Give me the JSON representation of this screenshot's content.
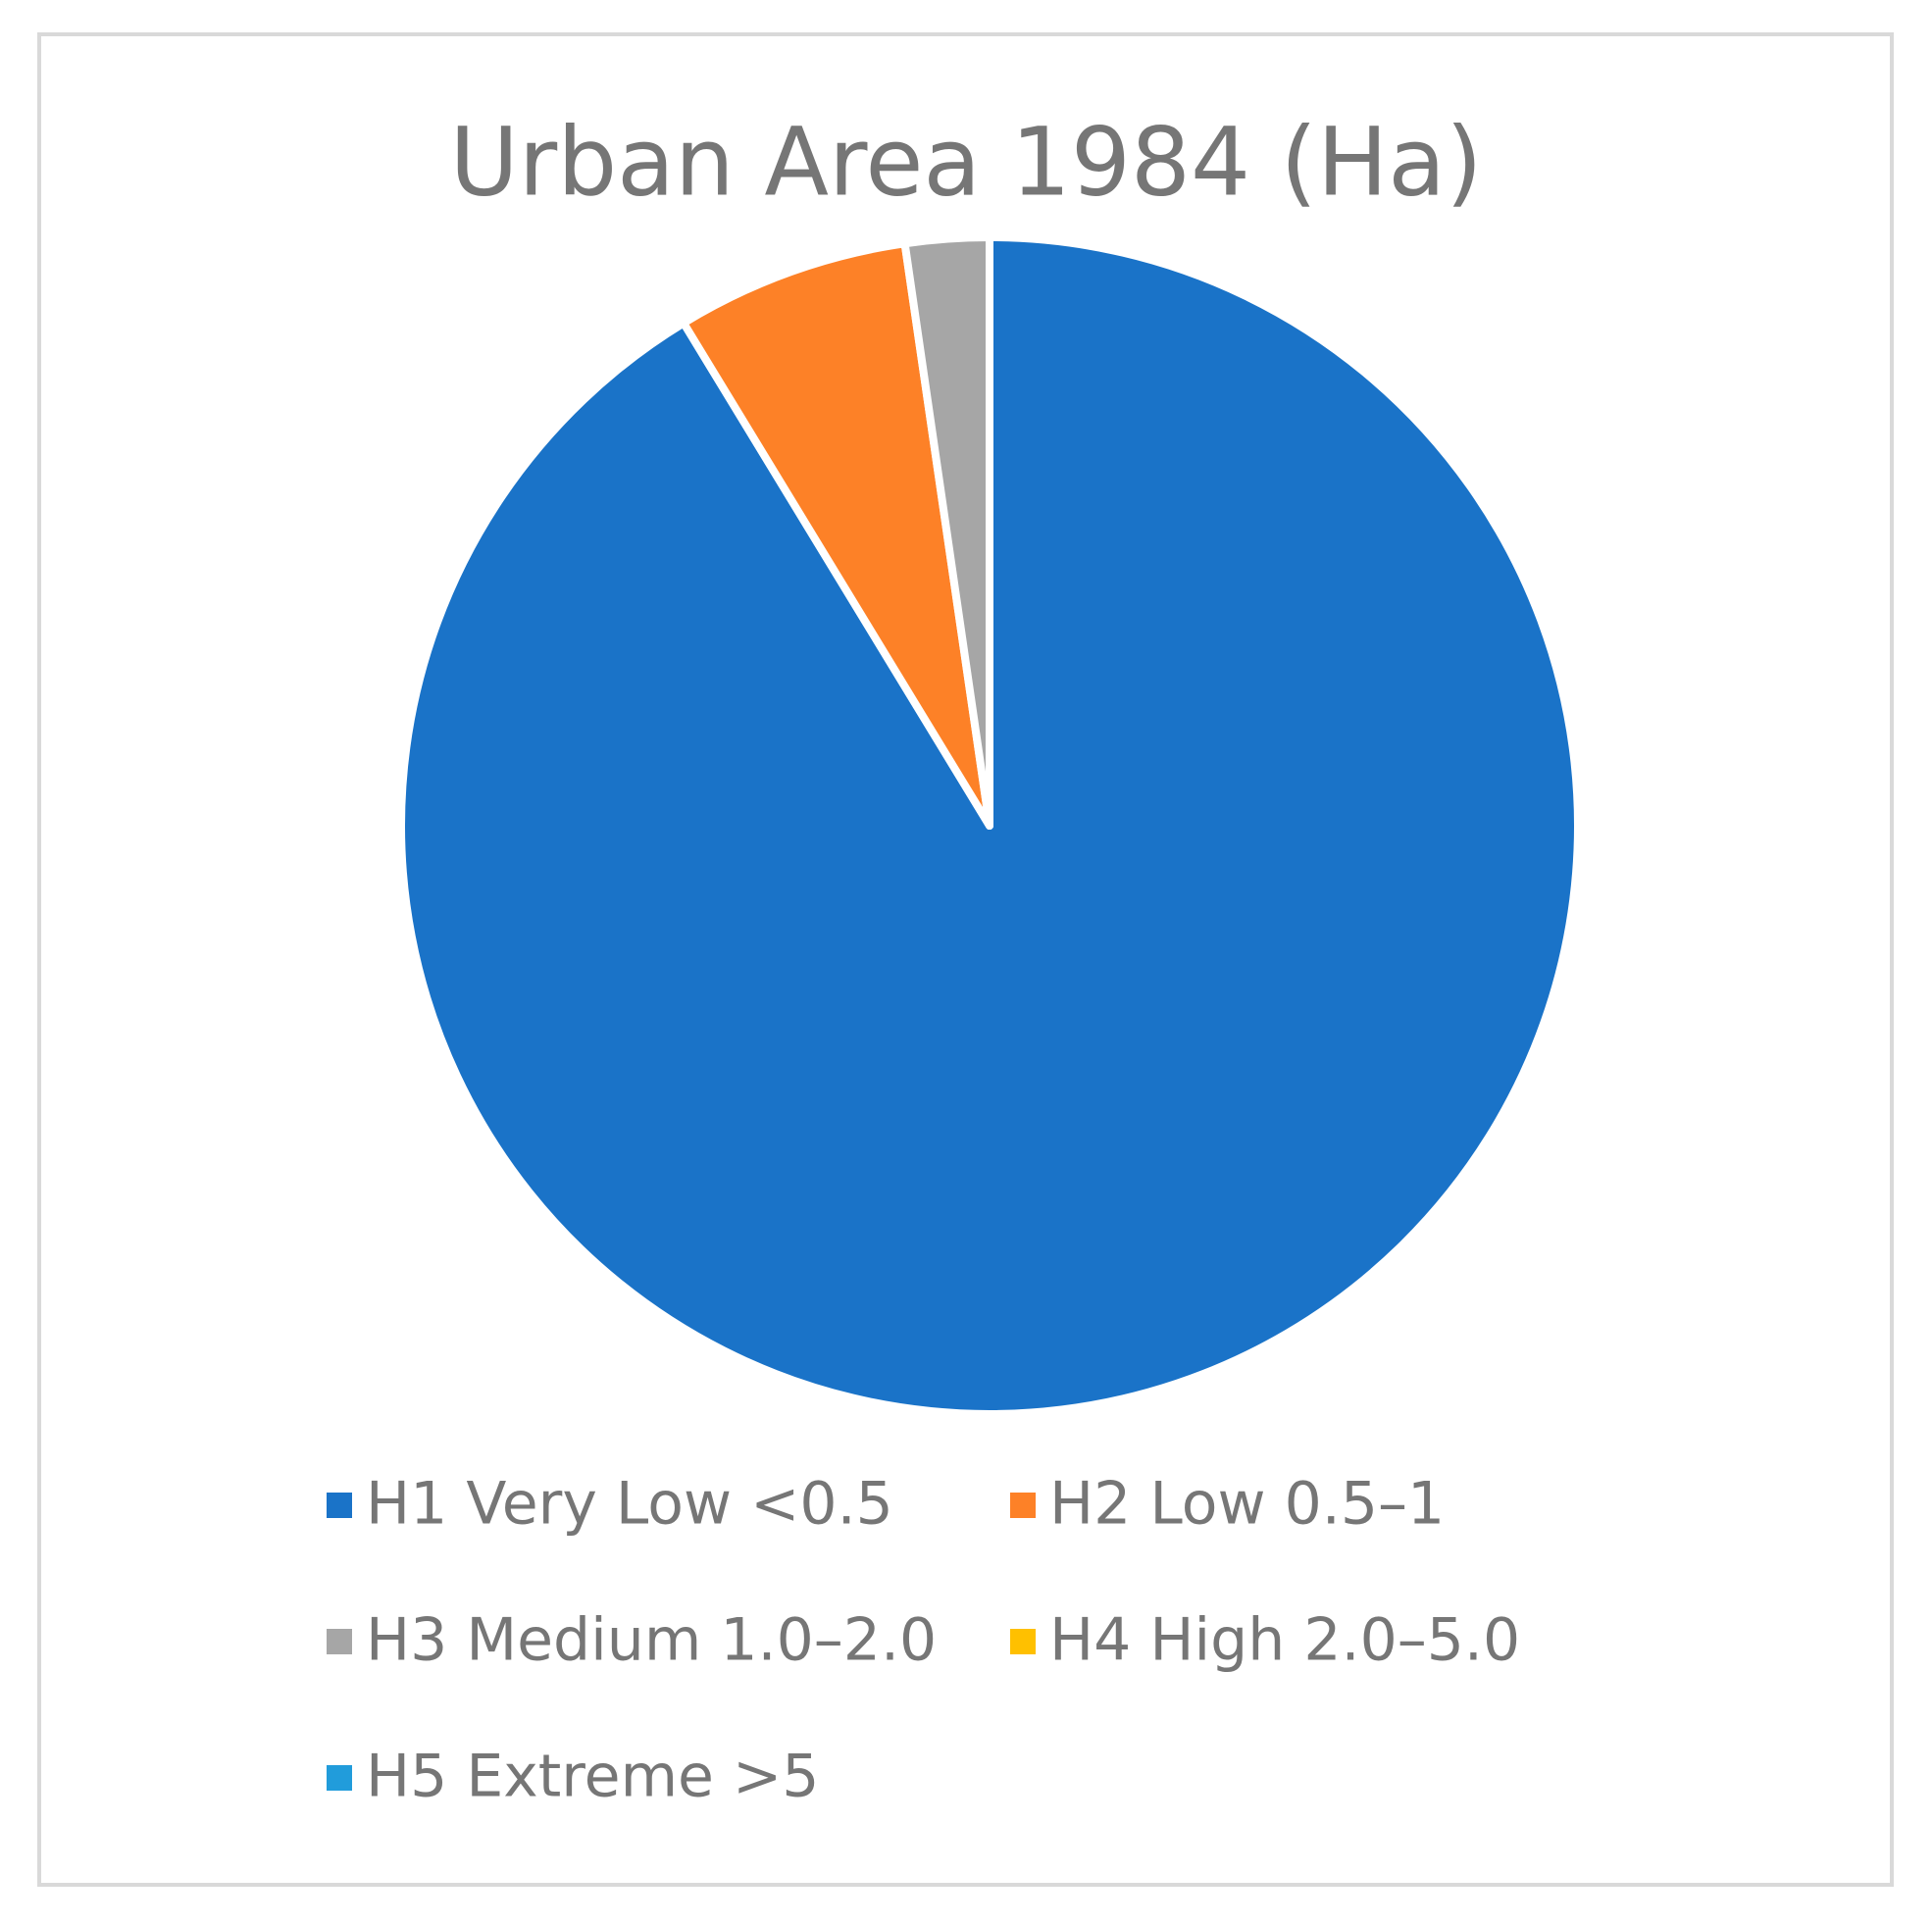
{
  "chart_data": {
    "type": "pie",
    "title": "Urban Area 1984 (Ha)",
    "categories": [
      "H1 Very Low <0.5",
      "H2 Low 0.5–1",
      "H3 Medium 1.0–2.0",
      "H4 High 2.0–5.0",
      "H5 Extreme >5"
    ],
    "values": [
      91.3,
      6.4,
      2.3,
      0,
      0
    ],
    "colors": [
      "#1a73c8",
      "#fd8127",
      "#a6a6a6",
      "#ffc000",
      "#219cdb"
    ],
    "legend": "bottom"
  }
}
